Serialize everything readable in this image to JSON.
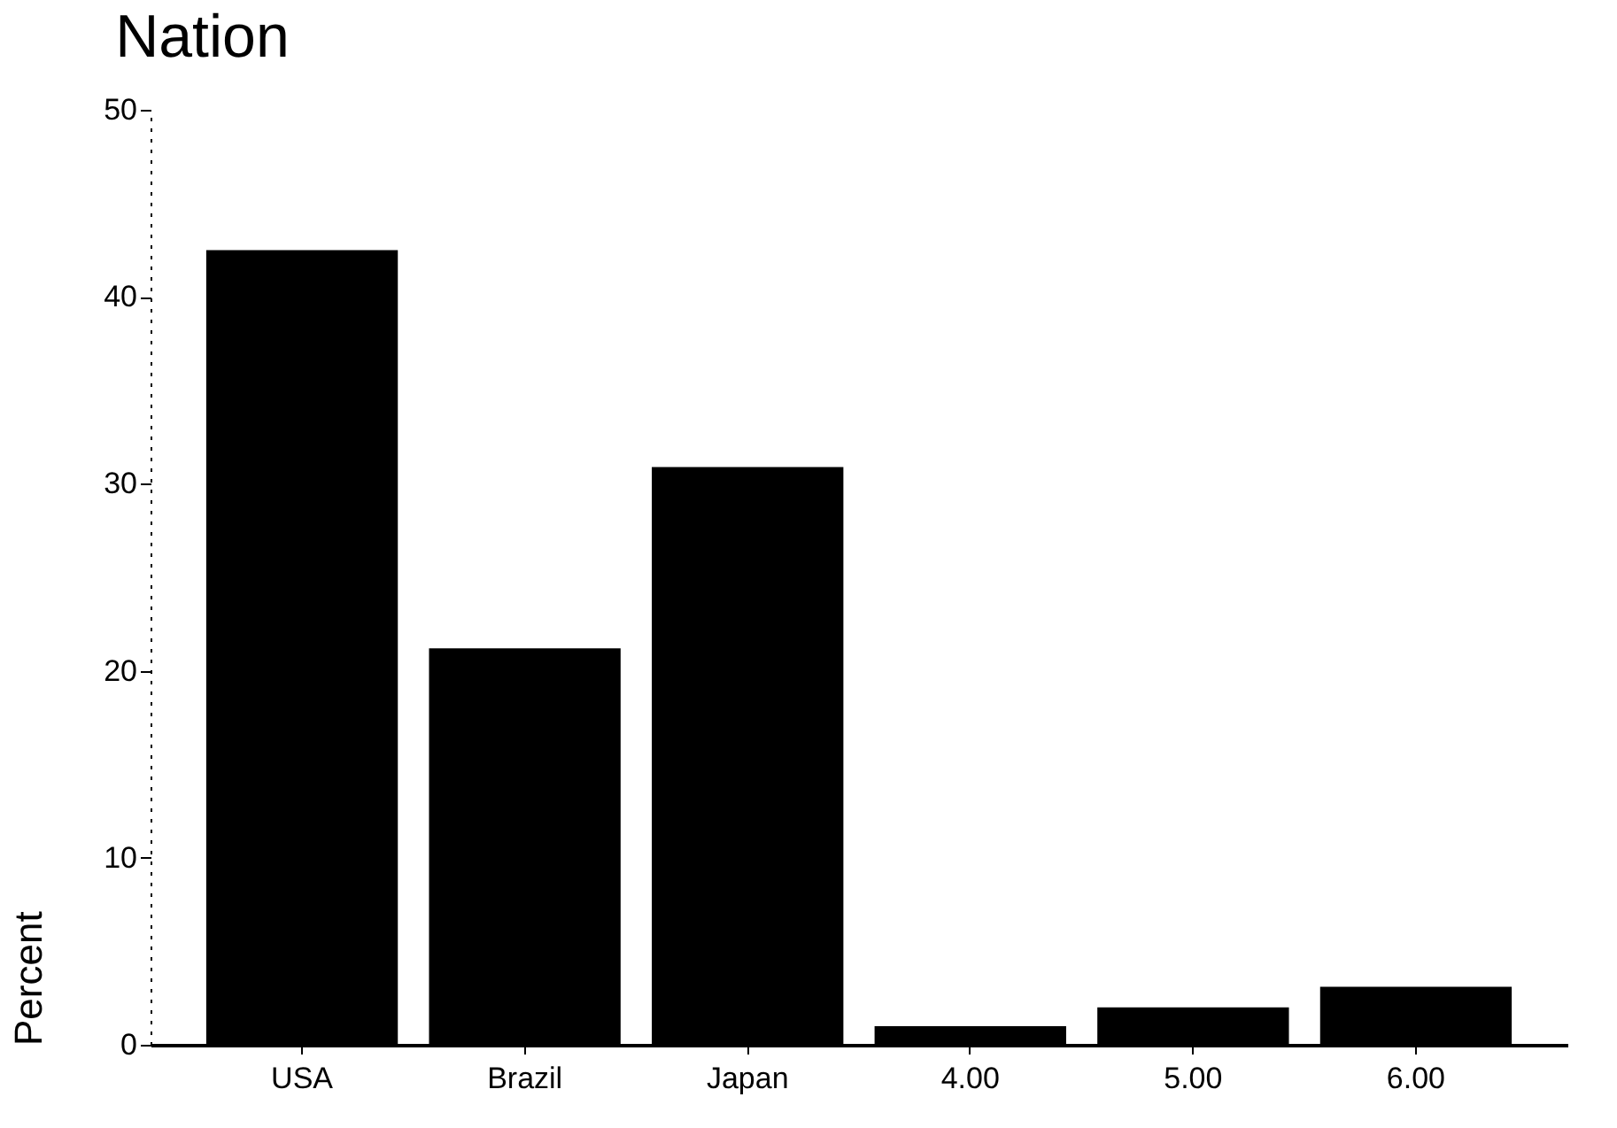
{
  "chart_data": {
    "type": "bar",
    "title": "Nation",
    "ylabel": "Percent",
    "categories": [
      "USA",
      "Brazil",
      "Japan",
      "4.00",
      "5.00",
      "6.00"
    ],
    "values": [
      42.5,
      21.2,
      30.9,
      1.0,
      2.0,
      3.1
    ],
    "color": "#000000",
    "ylim": [
      0,
      50
    ],
    "yticks": [
      0,
      10,
      20,
      30,
      40,
      50
    ],
    "grid": false
  }
}
